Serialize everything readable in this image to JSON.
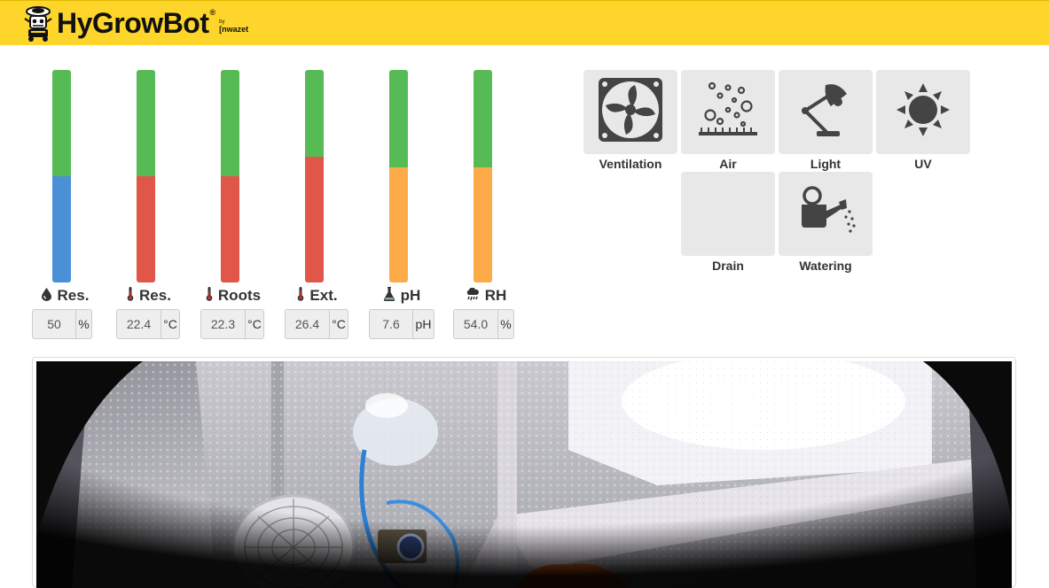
{
  "app": {
    "title": "HyGrowBot",
    "reg": "®",
    "by": "by",
    "brand": "[nwazet"
  },
  "gauges": [
    {
      "id": "res-level",
      "icon": "water-drop-icon",
      "label": "Res.",
      "value": "50",
      "unit": "%",
      "level": 0.5,
      "level_color": "#4a90d6"
    },
    {
      "id": "res-temp",
      "icon": "thermometer-icon",
      "label": "Res.",
      "value": "22.4",
      "unit": "°C",
      "level": 0.5,
      "level_color": "#e0574a"
    },
    {
      "id": "roots-temp",
      "icon": "thermometer-icon",
      "label": "Roots",
      "value": "22.3",
      "unit": "°C",
      "level": 0.5,
      "level_color": "#e0574a"
    },
    {
      "id": "ext-temp",
      "icon": "thermometer-icon",
      "label": "Ext.",
      "value": "26.4",
      "unit": "°C",
      "level": 0.59,
      "level_color": "#e0574a"
    },
    {
      "id": "ph",
      "icon": "flask-icon",
      "label": "pH",
      "value": "7.6",
      "unit": "pH",
      "level": 0.54,
      "level_color": "#fdaa48"
    },
    {
      "id": "rh",
      "icon": "rain-cloud-icon",
      "label": "RH",
      "value": "54.0",
      "unit": "%",
      "level": 0.54,
      "level_color": "#fdaa48"
    }
  ],
  "gauge_top_color": "#56bb54",
  "controls": [
    {
      "id": "ventilation",
      "icon": "fan-icon",
      "label": "Ventilation"
    },
    {
      "id": "air",
      "icon": "bubbles-icon",
      "label": "Air"
    },
    {
      "id": "light",
      "icon": "desk-lamp-icon",
      "label": "Light"
    },
    {
      "id": "uv",
      "icon": "sun-icon",
      "label": "UV"
    },
    {
      "id": "drain",
      "icon": "",
      "label": "Drain"
    },
    {
      "id": "watering",
      "icon": "watering-can-icon",
      "label": "Watering"
    }
  ],
  "camera": {
    "alt": "grow box camera view"
  }
}
